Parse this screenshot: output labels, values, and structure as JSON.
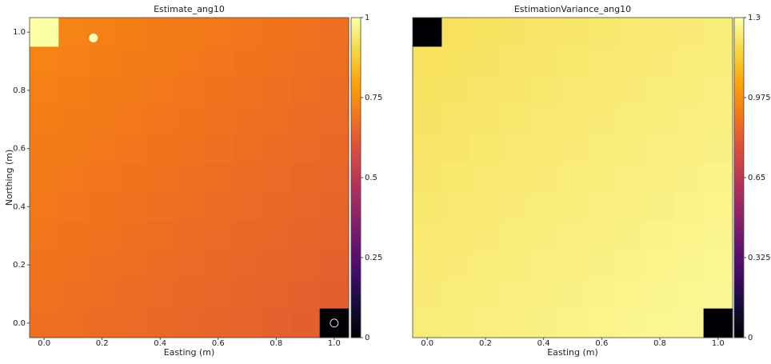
{
  "chart_data": [
    {
      "type": "heatmap",
      "title": "Estimate_ang10",
      "xlabel": "Easting (m)",
      "ylabel": "Northing (m)",
      "colormap": "inferno",
      "x": [
        0,
        0.1,
        0.2,
        0.3,
        0.4,
        0.5,
        0.6,
        0.7,
        0.8,
        0.9,
        1
      ],
      "y": [
        1,
        0.9,
        0.8,
        0.7,
        0.6,
        0.5,
        0.4,
        0.3,
        0.2,
        0.1,
        0
      ],
      "z": [
        [
          1,
          0.725,
          0.72,
          0.715,
          0.71,
          0.705,
          0.7,
          0.695,
          0.69,
          0.685,
          0.68
        ],
        [
          0.725,
          0.72,
          0.715,
          0.71,
          0.705,
          0.7,
          0.695,
          0.69,
          0.685,
          0.68,
          0.675
        ],
        [
          0.72,
          0.715,
          0.71,
          0.705,
          0.7,
          0.695,
          0.69,
          0.685,
          0.68,
          0.675,
          0.67
        ],
        [
          0.715,
          0.71,
          0.705,
          0.7,
          0.695,
          0.69,
          0.685,
          0.68,
          0.675,
          0.67,
          0.665
        ],
        [
          0.71,
          0.705,
          0.7,
          0.695,
          0.69,
          0.685,
          0.68,
          0.675,
          0.67,
          0.665,
          0.66
        ],
        [
          0.705,
          0.7,
          0.695,
          0.69,
          0.685,
          0.68,
          0.675,
          0.67,
          0.665,
          0.66,
          0.655
        ],
        [
          0.7,
          0.695,
          0.69,
          0.685,
          0.68,
          0.675,
          0.67,
          0.665,
          0.66,
          0.655,
          0.65
        ],
        [
          0.695,
          0.69,
          0.685,
          0.68,
          0.675,
          0.67,
          0.665,
          0.66,
          0.655,
          0.65,
          0.645
        ],
        [
          0.69,
          0.685,
          0.68,
          0.675,
          0.67,
          0.665,
          0.66,
          0.655,
          0.65,
          0.645,
          0.64
        ],
        [
          0.685,
          0.68,
          0.675,
          0.67,
          0.665,
          0.66,
          0.655,
          0.65,
          0.645,
          0.64,
          0.635
        ],
        [
          0.68,
          0.675,
          0.67,
          0.665,
          0.66,
          0.655,
          0.65,
          0.645,
          0.64,
          0.635,
          0
        ]
      ],
      "points": {
        "x": [
          0.17,
          1
        ],
        "y": [
          0.98,
          0
        ],
        "values": [
          1,
          0
        ]
      },
      "xlim": [
        -0.05,
        1.05
      ],
      "ylim": [
        -0.05,
        1.05
      ],
      "xticks": [
        {
          "value": 0,
          "label": "0.0"
        },
        0.2,
        0.4,
        0.6,
        0.8,
        {
          "value": 1,
          "label": "1.0"
        }
      ],
      "yticks": [
        {
          "value": 0,
          "label": "0.0"
        },
        0.2,
        0.4,
        0.6,
        0.8,
        {
          "value": 1,
          "label": "1.0"
        }
      ],
      "clim": [
        0,
        1
      ],
      "cticks": [
        0,
        0.25,
        0.5,
        0.75,
        1
      ]
    },
    {
      "type": "heatmap",
      "title": "EstimationVariance_ang10",
      "xlabel": "Easting (m)",
      "colormap": "inferno",
      "x": [
        0,
        0.1,
        0.2,
        0.3,
        0.4,
        0.5,
        0.6,
        0.7,
        0.8,
        0.9,
        1
      ],
      "y": [
        1,
        0.9,
        0.8,
        0.7,
        0.6,
        0.5,
        0.4,
        0.3,
        0.2,
        0.1,
        0
      ],
      "z": [
        [
          0,
          1.204,
          1.208,
          1.212,
          1.216,
          1.22,
          1.224,
          1.228,
          1.232,
          1.236,
          1.24
        ],
        [
          1.204,
          1.208,
          1.212,
          1.216,
          1.22,
          1.224,
          1.228,
          1.232,
          1.236,
          1.24,
          1.244
        ],
        [
          1.208,
          1.212,
          1.216,
          1.22,
          1.224,
          1.228,
          1.232,
          1.236,
          1.24,
          1.244,
          1.248
        ],
        [
          1.212,
          1.216,
          1.22,
          1.224,
          1.228,
          1.232,
          1.236,
          1.24,
          1.244,
          1.248,
          1.252
        ],
        [
          1.216,
          1.22,
          1.224,
          1.228,
          1.232,
          1.236,
          1.24,
          1.244,
          1.248,
          1.252,
          1.256
        ],
        [
          1.22,
          1.224,
          1.228,
          1.232,
          1.236,
          1.24,
          1.244,
          1.248,
          1.252,
          1.256,
          1.26
        ],
        [
          1.224,
          1.228,
          1.232,
          1.236,
          1.24,
          1.244,
          1.248,
          1.252,
          1.256,
          1.26,
          1.264
        ],
        [
          1.228,
          1.232,
          1.236,
          1.24,
          1.244,
          1.248,
          1.252,
          1.256,
          1.26,
          1.264,
          1.268
        ],
        [
          1.232,
          1.236,
          1.24,
          1.244,
          1.248,
          1.252,
          1.256,
          1.26,
          1.264,
          1.268,
          1.272
        ],
        [
          1.236,
          1.24,
          1.244,
          1.248,
          1.252,
          1.256,
          1.26,
          1.264,
          1.268,
          1.272,
          1.276
        ],
        [
          1.24,
          1.244,
          1.248,
          1.252,
          1.256,
          1.26,
          1.264,
          1.268,
          1.272,
          1.276,
          0
        ]
      ],
      "xlim": [
        -0.05,
        1.05
      ],
      "ylim": [
        -0.05,
        1.05
      ],
      "xticks": [
        {
          "value": 0,
          "label": "0.0"
        },
        0.2,
        0.4,
        0.6,
        0.8,
        {
          "value": 1,
          "label": "1.0"
        }
      ],
      "clim": [
        0,
        1.3
      ],
      "cticks": [
        0,
        0.325,
        0.65,
        0.975,
        1.3
      ]
    }
  ]
}
